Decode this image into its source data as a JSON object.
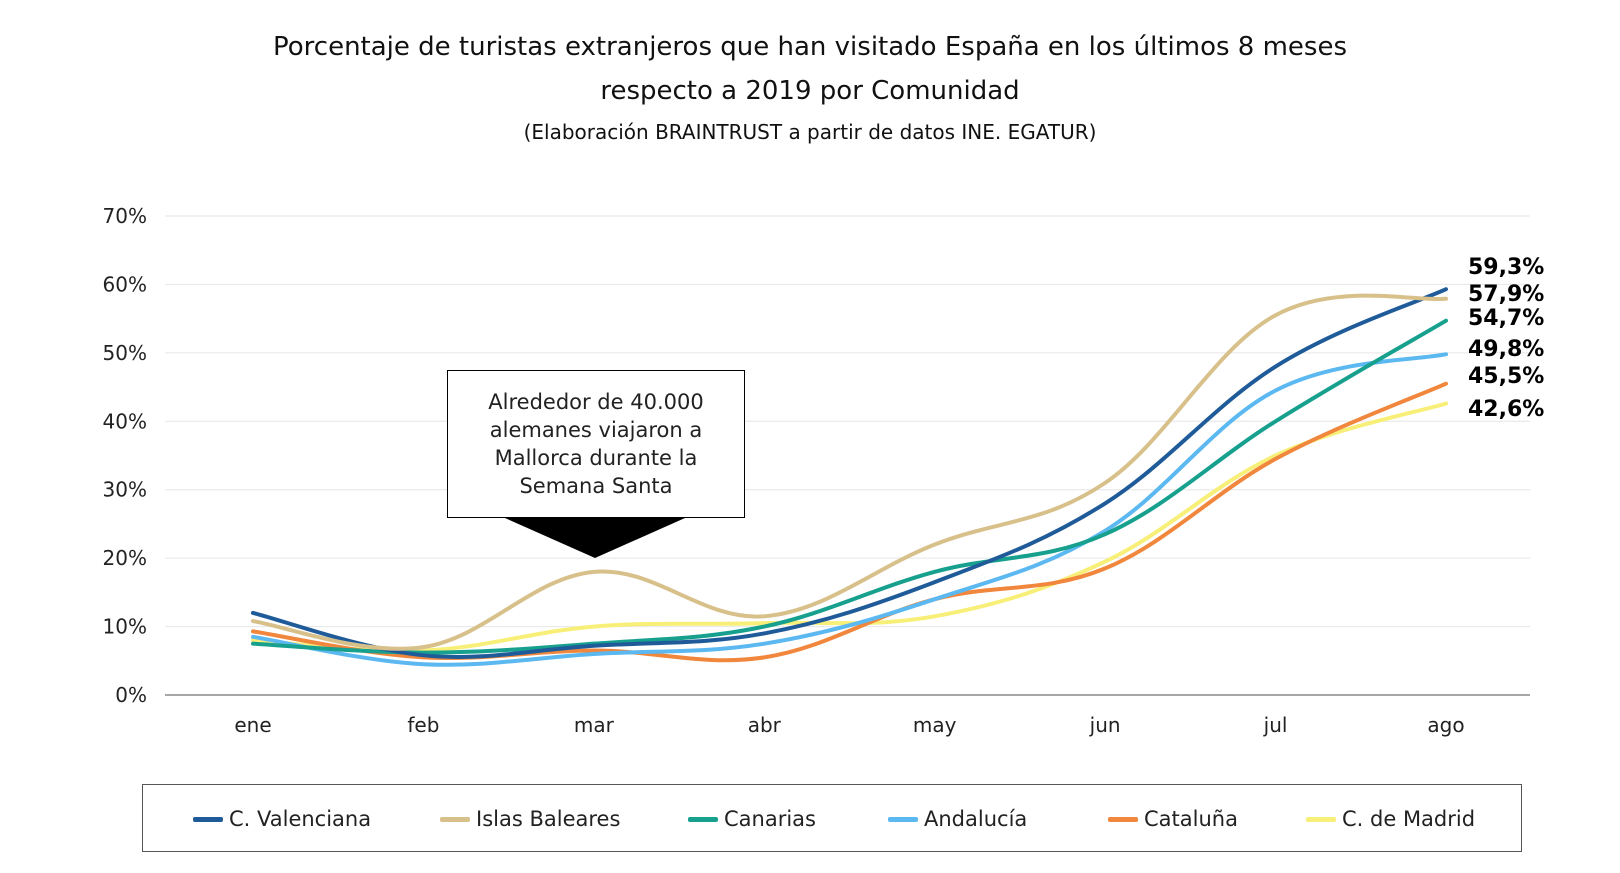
{
  "title_line1": "Porcentaje de turistas extranjeros que han visitado España en los últimos 8 meses",
  "title_line2": "respecto a 2019 por Comunidad",
  "subtitle": "(Elaboración BRAINTRUST a partir de datos INE. EGATUR)",
  "annotation": "Alrededor de 40.000 alemanes viajaron a Mallorca durante la Semana Santa",
  "chart_data": {
    "type": "line",
    "categories": [
      "ene",
      "feb",
      "mar",
      "abr",
      "may",
      "jun",
      "jul",
      "ago"
    ],
    "y_ticks": [
      "0%",
      "10%",
      "20%",
      "30%",
      "40%",
      "50%",
      "60%",
      "70%"
    ],
    "ylim": [
      0,
      70
    ],
    "grid": true,
    "legend_position": "bottom",
    "series": [
      {
        "name": "C. Valenciana",
        "color": "#1f5b99",
        "values": [
          12.0,
          5.8,
          7.2,
          9.0,
          16.5,
          28.0,
          48.0,
          59.3
        ],
        "end_label": "59,3%"
      },
      {
        "name": "Islas Baleares",
        "color": "#d8c08a",
        "values": [
          10.8,
          7.0,
          18.0,
          11.5,
          22.0,
          31.0,
          55.5,
          57.9
        ],
        "end_label": "57,9%"
      },
      {
        "name": "Canarias",
        "color": "#17a08e",
        "values": [
          7.5,
          6.2,
          7.5,
          10.0,
          18.0,
          23.5,
          40.0,
          54.7
        ],
        "end_label": "54,7%"
      },
      {
        "name": "Andalucía",
        "color": "#5bb8f0",
        "values": [
          8.5,
          4.5,
          6.0,
          7.5,
          14.0,
          24.0,
          44.5,
          49.8
        ],
        "end_label": "49,8%"
      },
      {
        "name": "Cataluña",
        "color": "#f0873c",
        "values": [
          9.3,
          5.5,
          6.5,
          5.5,
          14.0,
          18.5,
          34.5,
          45.5
        ],
        "end_label": "45,5%"
      },
      {
        "name": "C. de Madrid",
        "color": "#f8ef78",
        "values": [
          8.0,
          6.5,
          10.0,
          10.5,
          11.5,
          19.5,
          35.0,
          42.6
        ],
        "end_label": "42,6%"
      }
    ]
  }
}
